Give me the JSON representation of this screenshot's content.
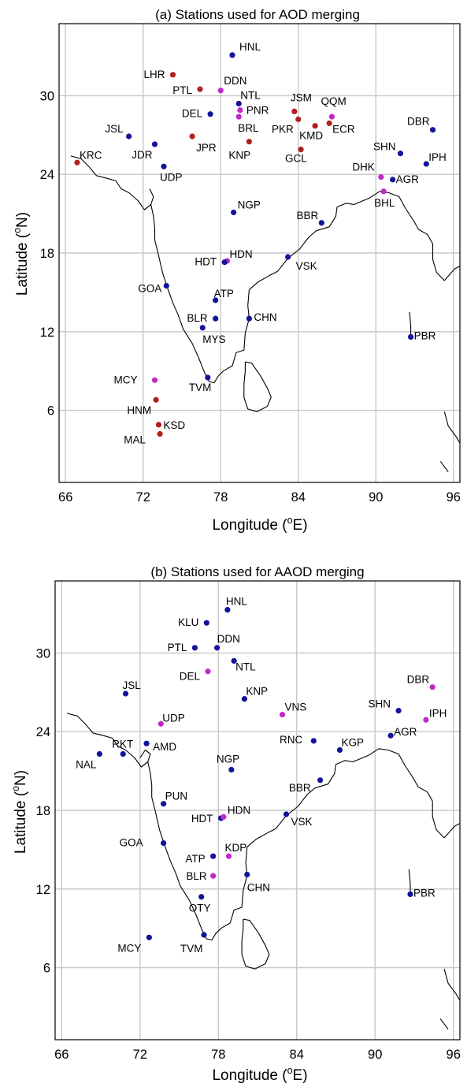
{
  "colors": {
    "blue": "#13139a",
    "red": "#b0201c",
    "magenta": "#c02ac9",
    "grid": "#c8c8c8"
  },
  "panels": [
    {
      "id": "a",
      "title": "(a) Stations used for AOD merging",
      "xlabel": "Longitude (",
      "xlabel_sup": "o",
      "xlabel_end": "E)",
      "ylabel": "Latitude (",
      "ylabel_sup": "o",
      "ylabel_end": "N)",
      "xticks": [
        "66",
        "72",
        "78",
        "84",
        "90",
        "96"
      ],
      "yticks": [
        "6",
        "12",
        "18",
        "24",
        "30"
      ],
      "chart_data": {
        "type": "scatter",
        "xlim": [
          65.5,
          96.5
        ],
        "ylim": [
          0.5,
          35.5
        ],
        "xtick_values": [
          66,
          72,
          78,
          84,
          90,
          96
        ],
        "ytick_values": [
          6,
          12,
          18,
          24,
          30
        ],
        "grid": true,
        "stations": [
          {
            "name": "HNL",
            "lon": 78.9,
            "lat": 33.1,
            "color": "blue"
          },
          {
            "name": "LHR",
            "lon": 74.3,
            "lat": 31.6,
            "color": "red"
          },
          {
            "name": "PTL",
            "lon": 76.4,
            "lat": 30.5,
            "color": "red"
          },
          {
            "name": "DDN",
            "lon": 78.0,
            "lat": 30.4,
            "color": "magenta"
          },
          {
            "name": "NTL",
            "lon": 79.4,
            "lat": 29.4,
            "color": "blue"
          },
          {
            "name": "PNR",
            "lon": 79.5,
            "lat": 28.9,
            "color": "magenta"
          },
          {
            "name": "DEL",
            "lon": 77.2,
            "lat": 28.6,
            "color": "blue"
          },
          {
            "name": "BRL",
            "lon": 79.4,
            "lat": 28.4,
            "color": "magenta"
          },
          {
            "name": "JSM",
            "lon": 83.7,
            "lat": 28.8,
            "color": "red"
          },
          {
            "name": "PKR",
            "lon": 84.0,
            "lat": 28.2,
            "color": "red"
          },
          {
            "name": "QQM",
            "lon": 86.6,
            "lat": 28.4,
            "color": "magenta"
          },
          {
            "name": "KMD",
            "lon": 85.3,
            "lat": 27.7,
            "color": "red"
          },
          {
            "name": "ECR",
            "lon": 86.4,
            "lat": 27.9,
            "color": "red"
          },
          {
            "name": "JSL",
            "lon": 70.9,
            "lat": 26.9,
            "color": "blue"
          },
          {
            "name": "JPR",
            "lon": 75.8,
            "lat": 26.9,
            "color": "red"
          },
          {
            "name": "KNP",
            "lon": 80.2,
            "lat": 26.5,
            "color": "red"
          },
          {
            "name": "JDR",
            "lon": 72.9,
            "lat": 26.3,
            "color": "blue"
          },
          {
            "name": "GCL",
            "lon": 84.2,
            "lat": 25.9,
            "color": "red"
          },
          {
            "name": "DBR",
            "lon": 94.4,
            "lat": 27.4,
            "color": "blue"
          },
          {
            "name": "SHN",
            "lon": 91.9,
            "lat": 25.6,
            "color": "blue"
          },
          {
            "name": "KRC",
            "lon": 66.9,
            "lat": 24.9,
            "color": "red"
          },
          {
            "name": "UDP",
            "lon": 73.6,
            "lat": 24.6,
            "color": "blue"
          },
          {
            "name": "IPH",
            "lon": 93.9,
            "lat": 24.8,
            "color": "blue"
          },
          {
            "name": "DHK",
            "lon": 90.4,
            "lat": 23.8,
            "color": "magenta"
          },
          {
            "name": "AGR",
            "lon": 91.3,
            "lat": 23.6,
            "color": "blue"
          },
          {
            "name": "BHL",
            "lon": 90.6,
            "lat": 22.7,
            "color": "magenta"
          },
          {
            "name": "NGP",
            "lon": 79.0,
            "lat": 21.1,
            "color": "blue"
          },
          {
            "name": "BBR",
            "lon": 85.8,
            "lat": 20.3,
            "color": "blue"
          },
          {
            "name": "HDN",
            "lon": 78.5,
            "lat": 17.4,
            "color": "magenta"
          },
          {
            "name": "HDT",
            "lon": 78.3,
            "lat": 17.3,
            "color": "blue"
          },
          {
            "name": "VSK",
            "lon": 83.2,
            "lat": 17.7,
            "color": "blue"
          },
          {
            "name": "GOA",
            "lon": 73.8,
            "lat": 15.5,
            "color": "blue"
          },
          {
            "name": "ATP",
            "lon": 77.6,
            "lat": 14.4,
            "color": "blue"
          },
          {
            "name": "BLR",
            "lon": 77.6,
            "lat": 13.0,
            "color": "blue"
          },
          {
            "name": "MYS",
            "lon": 76.6,
            "lat": 12.3,
            "color": "blue"
          },
          {
            "name": "CHN",
            "lon": 80.2,
            "lat": 13.0,
            "color": "blue"
          },
          {
            "name": "PBR",
            "lon": 92.7,
            "lat": 11.6,
            "color": "blue"
          },
          {
            "name": "MCY",
            "lon": 72.9,
            "lat": 8.3,
            "color": "magenta"
          },
          {
            "name": "TVM",
            "lon": 77.0,
            "lat": 8.5,
            "color": "blue"
          },
          {
            "name": "HNM",
            "lon": 73.0,
            "lat": 6.8,
            "color": "red"
          },
          {
            "name": "KSD",
            "lon": 73.2,
            "lat": 4.9,
            "color": "red"
          },
          {
            "name": "MAL",
            "lon": 73.3,
            "lat": 4.2,
            "color": "red"
          }
        ]
      }
    },
    {
      "id": "b",
      "title": "(b) Stations used for AAOD merging",
      "xlabel": "Longitude (",
      "xlabel_sup": "o",
      "xlabel_end": "E)",
      "ylabel": "Latitude (",
      "ylabel_sup": "o",
      "ylabel_end": "N)",
      "xticks": [
        "66",
        "72",
        "78",
        "84",
        "90",
        "96"
      ],
      "yticks": [
        "6",
        "12",
        "18",
        "24",
        "30"
      ],
      "chart_data": {
        "type": "scatter",
        "xlim": [
          65.5,
          96.5
        ],
        "ylim": [
          0.5,
          35.5
        ],
        "xtick_values": [
          66,
          72,
          78,
          84,
          90,
          96
        ],
        "ytick_values": [
          6,
          12,
          18,
          24,
          30
        ],
        "grid": true,
        "stations": [
          {
            "name": "HNL",
            "lon": 78.7,
            "lat": 33.3,
            "color": "blue"
          },
          {
            "name": "KLU",
            "lon": 77.1,
            "lat": 32.3,
            "color": "blue"
          },
          {
            "name": "PTL",
            "lon": 76.2,
            "lat": 30.4,
            "color": "blue"
          },
          {
            "name": "DDN",
            "lon": 77.9,
            "lat": 30.4,
            "color": "blue"
          },
          {
            "name": "NTL",
            "lon": 79.2,
            "lat": 29.4,
            "color": "blue"
          },
          {
            "name": "DEL",
            "lon": 77.2,
            "lat": 28.6,
            "color": "magenta"
          },
          {
            "name": "JSL",
            "lon": 70.9,
            "lat": 26.9,
            "color": "blue"
          },
          {
            "name": "KNP",
            "lon": 80.0,
            "lat": 26.5,
            "color": "blue"
          },
          {
            "name": "VNS",
            "lon": 82.9,
            "lat": 25.3,
            "color": "magenta"
          },
          {
            "name": "SHN",
            "lon": 91.8,
            "lat": 25.6,
            "color": "blue"
          },
          {
            "name": "DBR",
            "lon": 94.4,
            "lat": 27.4,
            "color": "magenta"
          },
          {
            "name": "IPH",
            "lon": 93.9,
            "lat": 24.9,
            "color": "magenta"
          },
          {
            "name": "UDP",
            "lon": 73.6,
            "lat": 24.6,
            "color": "magenta"
          },
          {
            "name": "AGR",
            "lon": 91.2,
            "lat": 23.7,
            "color": "blue"
          },
          {
            "name": "RKT",
            "lon": 70.7,
            "lat": 22.3,
            "color": "blue"
          },
          {
            "name": "NAL",
            "lon": 68.9,
            "lat": 22.3,
            "color": "blue"
          },
          {
            "name": "AMD",
            "lon": 72.5,
            "lat": 23.1,
            "color": "blue"
          },
          {
            "name": "RNC",
            "lon": 85.3,
            "lat": 23.3,
            "color": "blue"
          },
          {
            "name": "KGP",
            "lon": 87.3,
            "lat": 22.6,
            "color": "blue"
          },
          {
            "name": "NGP",
            "lon": 79.0,
            "lat": 21.1,
            "color": "blue"
          },
          {
            "name": "BBR",
            "lon": 85.8,
            "lat": 20.3,
            "color": "blue"
          },
          {
            "name": "PUN",
            "lon": 73.8,
            "lat": 18.5,
            "color": "blue"
          },
          {
            "name": "HDT",
            "lon": 78.2,
            "lat": 17.4,
            "color": "blue"
          },
          {
            "name": "HDN",
            "lon": 78.4,
            "lat": 17.5,
            "color": "magenta"
          },
          {
            "name": "VSK",
            "lon": 83.2,
            "lat": 17.7,
            "color": "blue"
          },
          {
            "name": "GOA",
            "lon": 73.8,
            "lat": 15.5,
            "color": "blue"
          },
          {
            "name": "ATP",
            "lon": 77.6,
            "lat": 14.5,
            "color": "blue"
          },
          {
            "name": "KDP",
            "lon": 78.8,
            "lat": 14.5,
            "color": "magenta"
          },
          {
            "name": "BLR",
            "lon": 77.6,
            "lat": 13.0,
            "color": "magenta"
          },
          {
            "name": "CHN",
            "lon": 80.2,
            "lat": 13.1,
            "color": "blue"
          },
          {
            "name": "OTY",
            "lon": 76.7,
            "lat": 11.4,
            "color": "blue"
          },
          {
            "name": "PBR",
            "lon": 92.7,
            "lat": 11.6,
            "color": "blue"
          },
          {
            "name": "TVM",
            "lon": 76.9,
            "lat": 8.5,
            "color": "blue"
          },
          {
            "name": "MCY",
            "lon": 72.7,
            "lat": 8.3,
            "color": "blue"
          }
        ]
      }
    }
  ]
}
